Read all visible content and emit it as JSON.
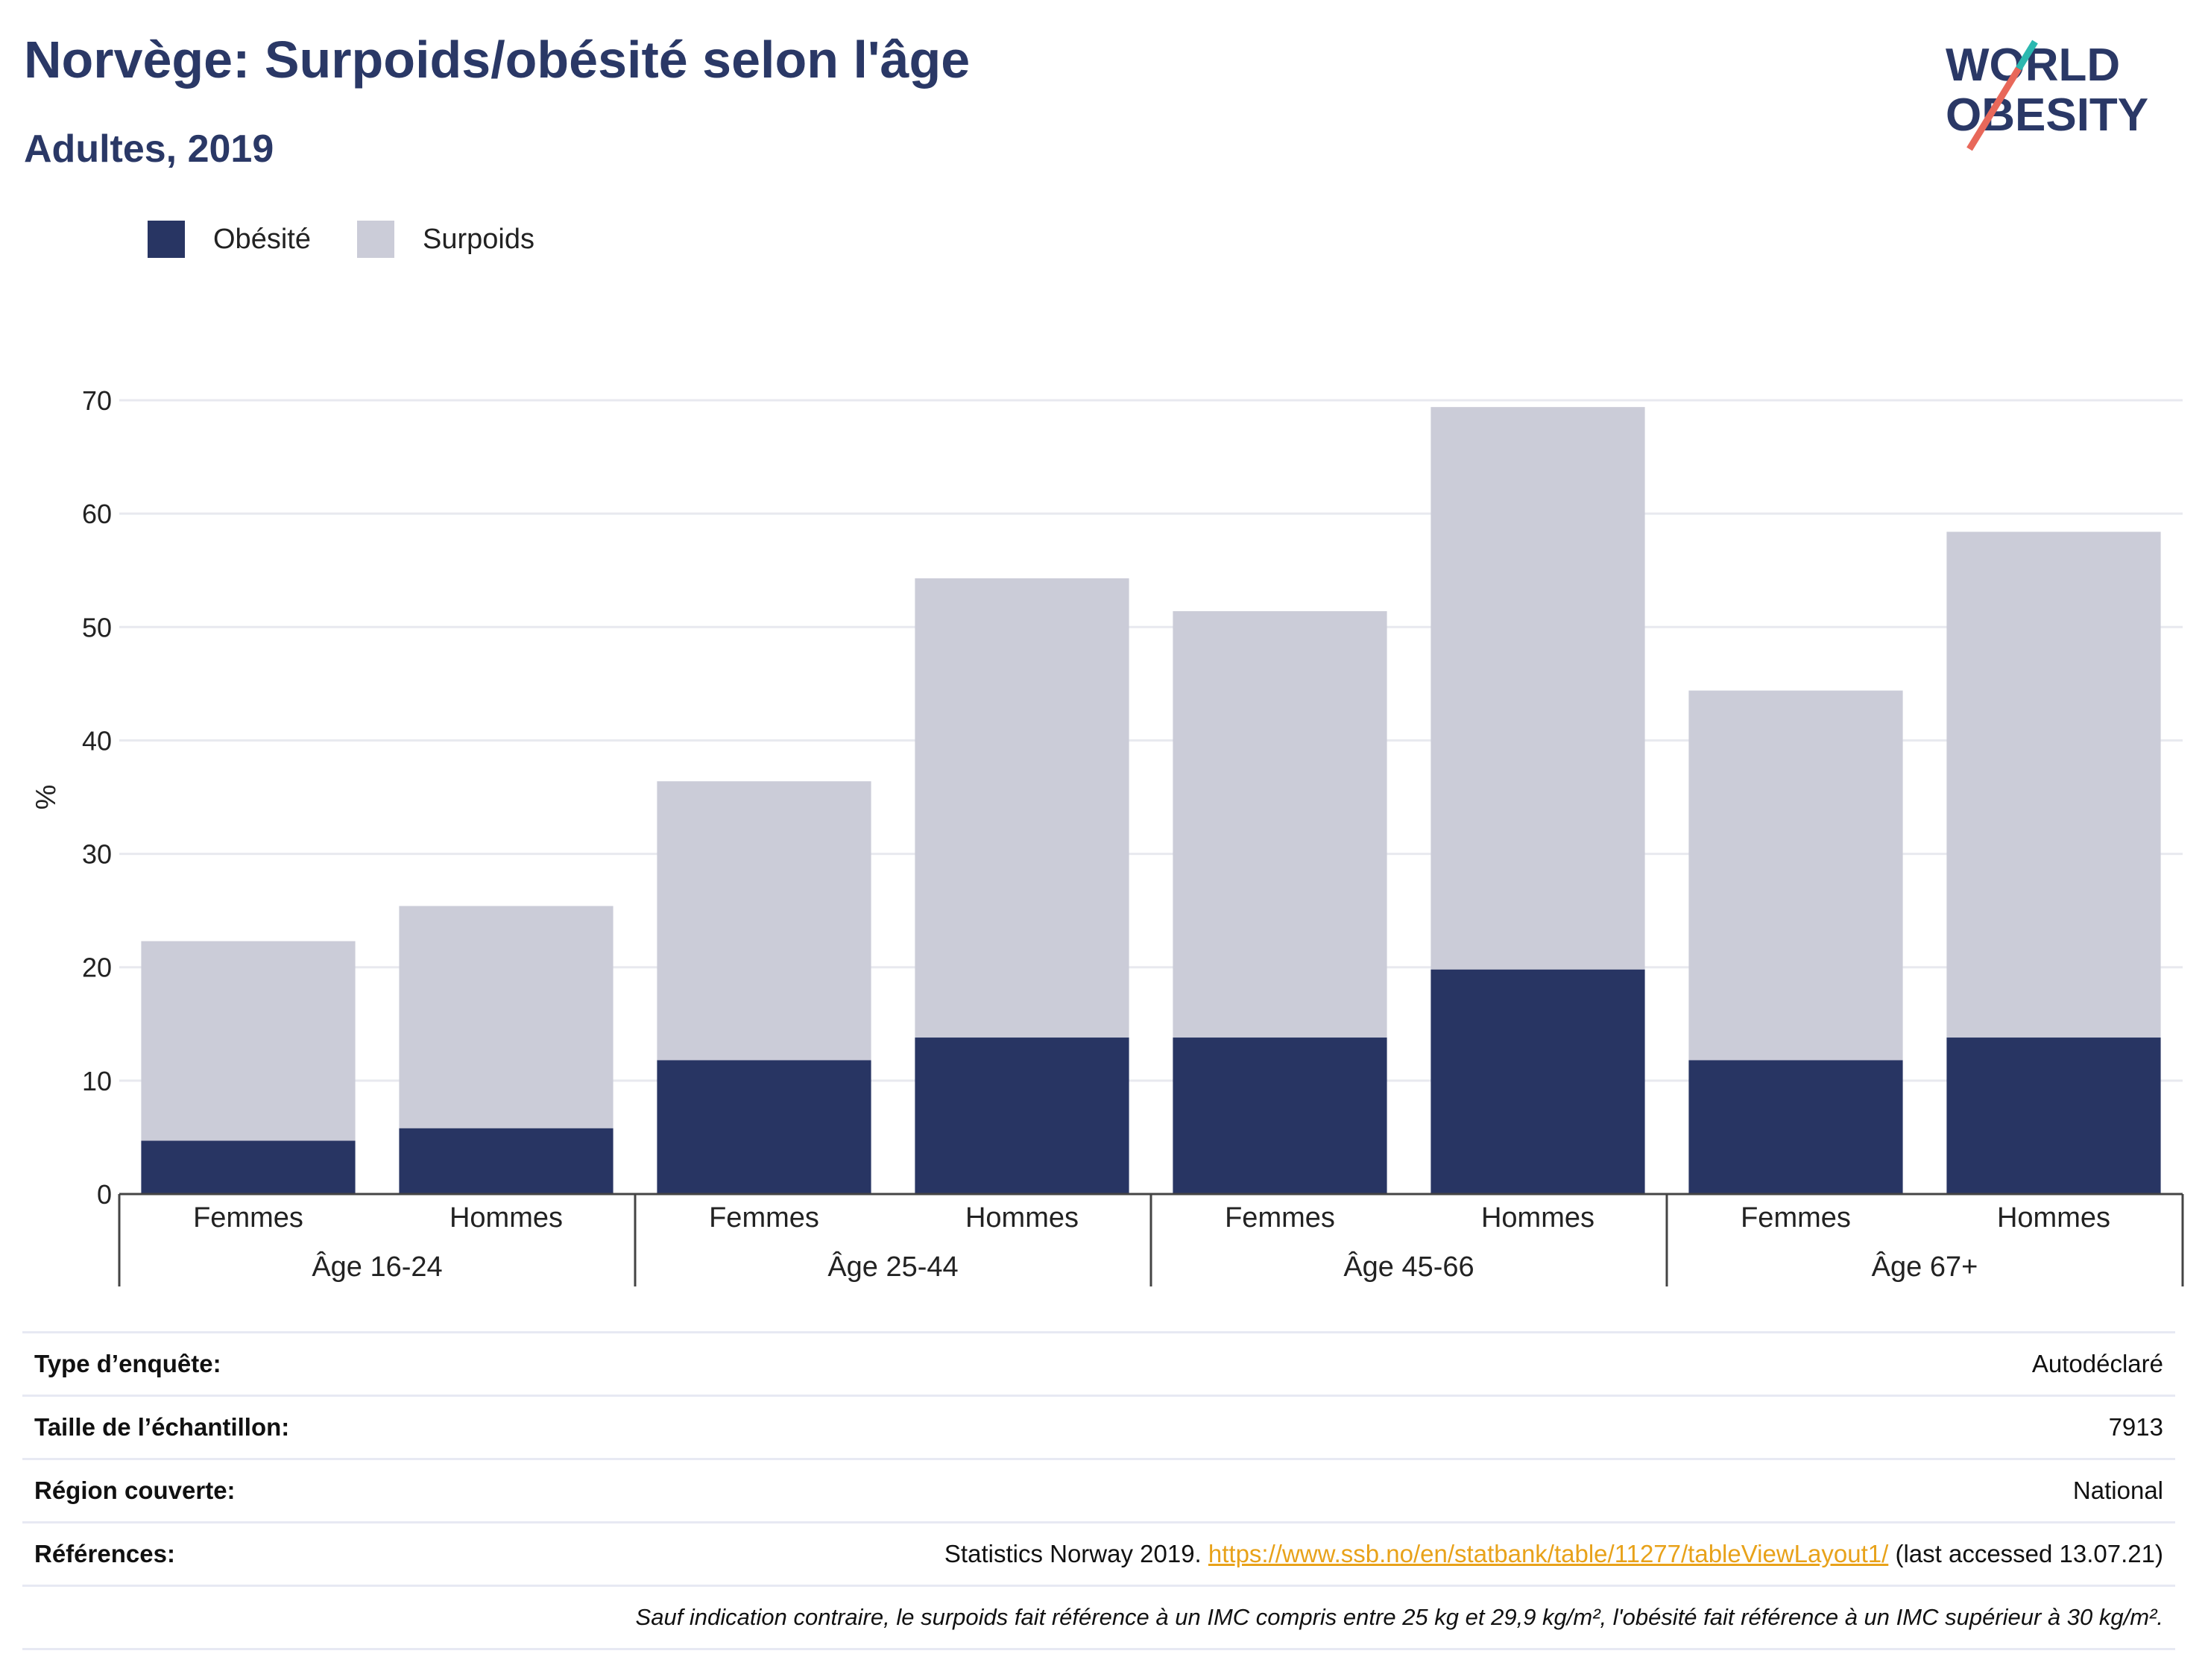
{
  "header": {
    "title": "Norvège: Surpoids/obésité selon l'âge",
    "subtitle": "Adultes, 2019"
  },
  "logo": {
    "line1": "WORLD",
    "line2": "OBESITY"
  },
  "colors": {
    "obesity": "#283563",
    "overweight": "#cbccd8",
    "title": "#2a3866",
    "link": "#e8a21a"
  },
  "chart_data": {
    "type": "bar",
    "stacked": true,
    "categories": [
      "Femmes",
      "Hommes",
      "Femmes",
      "Hommes",
      "Femmes",
      "Hommes",
      "Femmes",
      "Hommes"
    ],
    "groups": [
      {
        "label": "Âge 16-24",
        "count": 2
      },
      {
        "label": "Âge 25-44",
        "count": 2
      },
      {
        "label": "Âge 45-66",
        "count": 2
      },
      {
        "label": "Âge 67+",
        "count": 2
      }
    ],
    "series": [
      {
        "name": "Obésité",
        "values": [
          4.7,
          5.8,
          11.8,
          13.8,
          13.8,
          19.8,
          11.8,
          13.8
        ]
      },
      {
        "name": "Surpoids",
        "values": [
          17.6,
          19.6,
          24.6,
          40.5,
          37.6,
          49.6,
          32.6,
          44.6
        ]
      }
    ],
    "ylabel": "%",
    "ylim": [
      0,
      70
    ],
    "yticks": [
      0,
      10,
      20,
      30,
      40,
      50,
      60,
      70
    ],
    "grid": true,
    "legend": "top-left"
  },
  "info": {
    "rows": [
      {
        "label": "Type d’enquête:",
        "value": "Autodéclaré"
      },
      {
        "label": "Taille de l’échantillon:",
        "value": "7913"
      },
      {
        "label": "Région couverte:",
        "value": "National"
      }
    ],
    "references": {
      "label": "Références:",
      "prefix": "Statistics Norway 2019. ",
      "link": "https://www.ssb.no/en/statbank/table/11277/tableViewLayout1/",
      "suffix": " (last accessed 13.07.21)"
    },
    "note": "Sauf indication contraire, le surpoids fait référence à un IMC compris entre 25 kg et 29,9 kg/m², l'obésité fait référence à un IMC supérieur à 30 kg/m²."
  }
}
